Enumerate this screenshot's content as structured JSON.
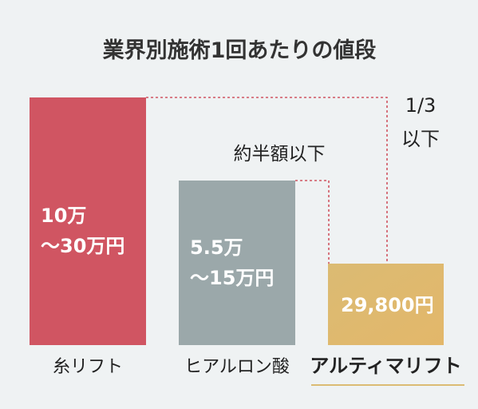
{
  "chart_data": {
    "type": "bar",
    "title": "業界別施術1回あたりの値段",
    "categories": [
      "糸リフト",
      "ヒアルロン酸",
      "アルティマリフト"
    ],
    "series": [
      {
        "values": [
          300000,
          150000,
          29800
        ]
      }
    ],
    "value_labels": [
      [
        "10万",
        "～30万円"
      ],
      [
        "5.5万",
        "～15万円"
      ],
      [
        "29,800円"
      ]
    ],
    "annotations": [
      {
        "lines": [
          "1/3",
          "以下"
        ]
      },
      {
        "lines": [
          "約半額以下"
        ]
      }
    ],
    "colors": {
      "bars": [
        "#d05562",
        "#9ba8aa",
        "#dbbb73"
      ],
      "bar_gradient_end": "#e3b76a",
      "title": "#333333",
      "text": "#222222",
      "connector": "#d05562",
      "background": "#eff2f3"
    },
    "highlighted_category_index": 2,
    "grid": false,
    "legend": "none"
  }
}
